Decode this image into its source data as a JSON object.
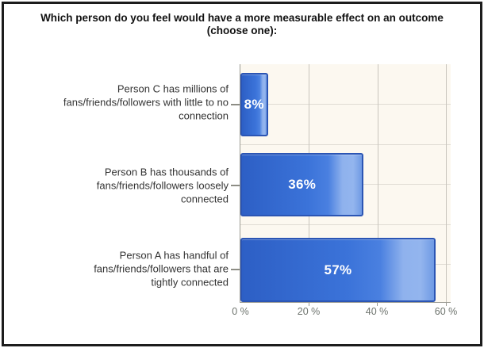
{
  "chart_data": {
    "type": "bar",
    "orientation": "horizontal",
    "title": "Which person do you feel would have a more measurable effect on an outcome (choose one):",
    "categories": [
      [
        "Person C has millions of",
        "fans/friends/followers with little to no",
        "connection"
      ],
      [
        "Person B has thousands of",
        "fans/friends/followers loosely",
        "connected"
      ],
      [
        "Person A has handful of",
        "fans/friends/followers that are",
        "tightly connected"
      ]
    ],
    "values": [
      8,
      36,
      57
    ],
    "value_labels": [
      "8%",
      "36%",
      "57%"
    ],
    "x_ticks": [
      "0 %",
      "20 %",
      "40 %",
      "60 %"
    ],
    "x_tick_values": [
      0,
      20,
      40,
      60
    ],
    "xlim": [
      0,
      61.4
    ],
    "grid": true,
    "legend": "none",
    "colors": {
      "bar": "#3b73d9",
      "bar_border": "#2b55b4",
      "bar_highlight": "#8fb2ed",
      "plot_background": "#fcf8f0",
      "gridline": "#c9c5bd",
      "axis": "#9b9b93",
      "tick_label_text": "#6e746e",
      "category_text": "#333333",
      "title_text": "#111111",
      "value_label_text": "#ffffff",
      "frame_border": "#1c1c1c"
    }
  }
}
